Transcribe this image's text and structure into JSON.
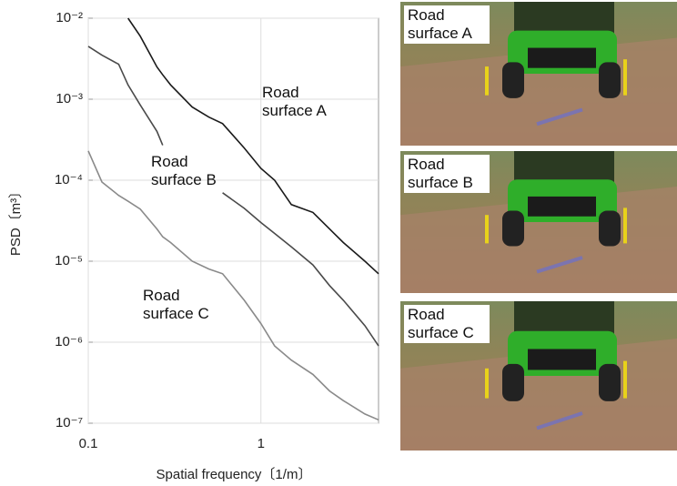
{
  "chart_data": {
    "type": "line",
    "x_label": "Spatial frequency〔1/m〕",
    "y_label": "PSD〔m³〕",
    "xscale": "log",
    "yscale": "log",
    "grid": true,
    "xlim": [
      0.1,
      4.8
    ],
    "xticks": [
      0.1,
      1
    ],
    "ylim": [
      1e-07,
      0.01
    ],
    "yticks": [
      {
        "value": 1e-07,
        "label": "10⁻⁷"
      },
      {
        "value": 1e-06,
        "label": "10⁻⁶"
      },
      {
        "value": 1e-05,
        "label": "10⁻⁵"
      },
      {
        "value": 0.0001,
        "label": "10⁻⁴"
      },
      {
        "value": 0.001,
        "label": "10⁻³"
      },
      {
        "value": 0.01,
        "label": "10⁻²"
      }
    ],
    "x": [
      0.1,
      0.12,
      0.15,
      0.17,
      0.2,
      0.25,
      0.27,
      0.3,
      0.4,
      0.5,
      0.6,
      0.8,
      1,
      1.2,
      1.5,
      2,
      2.5,
      3,
      4,
      4.8
    ],
    "series": [
      {
        "name": "Road surface A",
        "color": "#1a1a1a",
        "values": [
          null,
          null,
          null,
          0.01,
          0.006,
          0.0025,
          0.002,
          0.0015,
          0.0008,
          0.0006,
          0.0005,
          0.00025,
          0.00014,
          0.0001,
          5e-05,
          4e-05,
          2.5e-05,
          1.7e-05,
          1e-05,
          7e-06
        ]
      },
      {
        "name": "Road surface B",
        "color": "#4a4a4a",
        "values": [
          0.0045,
          0.0035,
          0.0027,
          0.0015,
          0.00085,
          0.0004,
          0.00027,
          null,
          null,
          null,
          7e-05,
          4.5e-05,
          3e-05,
          2.2e-05,
          1.5e-05,
          9e-06,
          5e-06,
          3.3e-06,
          1.6e-06,
          9e-07
        ]
      },
      {
        "name": "Road surface C",
        "color": "#8a8a8a",
        "values": [
          0.00023,
          9.5e-05,
          6.5e-05,
          5.5e-05,
          4.4e-05,
          2.5e-05,
          2e-05,
          1.7e-05,
          1e-05,
          8e-06,
          7e-06,
          3.3e-06,
          1.7e-06,
          9e-07,
          6e-07,
          4e-07,
          2.5e-07,
          1.9e-07,
          1.3e-07,
          1.1e-07
        ]
      }
    ]
  },
  "panels": [
    "Road surface A",
    "Road surface B",
    "Road surface C"
  ]
}
